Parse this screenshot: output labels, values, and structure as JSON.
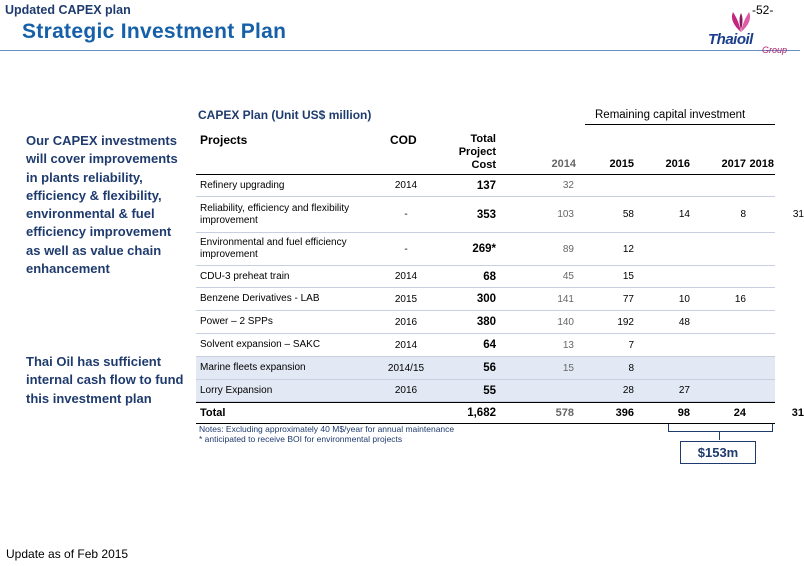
{
  "header": {
    "label": "Updated CAPEX plan",
    "page_number": "-52-",
    "title": "Strategic Investment Plan",
    "logo_name": "Thaioil",
    "logo_sub": "Group"
  },
  "sidebar": {
    "text_1": "Our CAPEX investments will cover improvements in plants reliability, efficiency & flexibility, environmental & fuel efficiency improvement as well as value chain enhancement",
    "text_2": "Thai Oil has sufficient internal cash flow to fund this investment plan"
  },
  "table": {
    "title": "CAPEX Plan (Unit US$ million)",
    "group_header": "Remaining capital investment",
    "columns": {
      "projects": "Projects",
      "cod": "COD",
      "total_line1": "Total",
      "total_line2": "Project",
      "total_line3": "Cost",
      "y2014": "2014",
      "y2015": "2015",
      "y2016": "2016",
      "y2017": "2017",
      "y2018": "2018"
    },
    "rows": [
      {
        "name": "Refinery upgrading",
        "cod": "2014",
        "total": "137",
        "y2014": "32",
        "y2015": "",
        "y2016": "",
        "y2017": "",
        "y2018": ""
      },
      {
        "name": "Reliability, efficiency and flexibility improvement",
        "cod": "-",
        "total": "353",
        "y2014": "103",
        "y2015": "58",
        "y2016": "14",
        "y2017": "8",
        "y2018": "31"
      },
      {
        "name": "Environmental and fuel efficiency improvement",
        "cod": "-",
        "total": "269*",
        "y2014": "89",
        "y2015": "12",
        "y2016": "",
        "y2017": "",
        "y2018": ""
      },
      {
        "name": "CDU-3 preheat train",
        "cod": "2014",
        "total": "68",
        "y2014": "45",
        "y2015": "15",
        "y2016": "",
        "y2017": "",
        "y2018": ""
      },
      {
        "name": "Benzene Derivatives - LAB",
        "cod": "2015",
        "total": "300",
        "y2014": "141",
        "y2015": "77",
        "y2016": "10",
        "y2017": "16",
        "y2018": ""
      },
      {
        "name": "Power – 2 SPPs",
        "cod": "2016",
        "total": "380",
        "y2014": "140",
        "y2015": "192",
        "y2016": "48",
        "y2017": "",
        "y2018": ""
      },
      {
        "name": "Solvent expansion – SAKC",
        "cod": "2014",
        "total": "64",
        "y2014": "13",
        "y2015": "7",
        "y2016": "",
        "y2017": "",
        "y2018": ""
      },
      {
        "name": "Marine fleets expansion",
        "cod": "2014/15",
        "total": "56",
        "y2014": "15",
        "y2015": "8",
        "y2016": "",
        "y2017": "",
        "y2018": ""
      },
      {
        "name": "Lorry Expansion",
        "cod": "2016",
        "total": "55",
        "y2014": "",
        "y2015": "28",
        "y2016": "27",
        "y2017": "",
        "y2018": ""
      }
    ],
    "total_row": {
      "name": "Total",
      "total": "1,682",
      "y2014": "578",
      "y2015": "396",
      "y2016": "98",
      "y2017": "24",
      "y2018": "31"
    },
    "notes": [
      "Notes: Excluding approximately 40 M$/year for annual maintenance",
      "* anticipated to receive BOI for environmental projects"
    ],
    "callout": "$153m"
  },
  "footer": "Update as of Feb 2015"
}
